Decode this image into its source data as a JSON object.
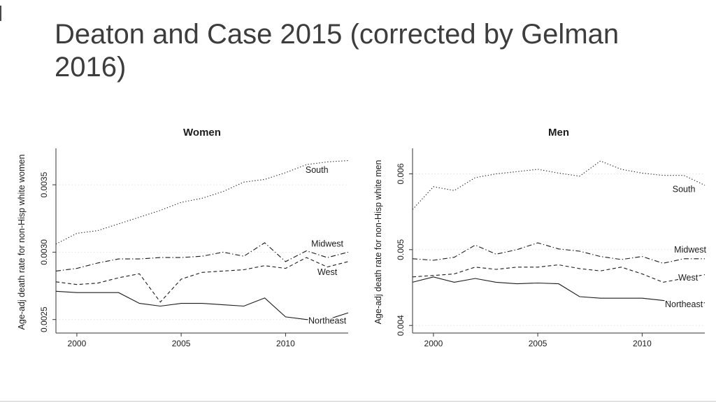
{
  "slide": {
    "title": "Deaton and Case 2015 (corrected by Gelman 2016)"
  },
  "chart_data": [
    {
      "type": "line",
      "title": "Women",
      "ylabel": "Age-adj death rate for non-Hisp white women",
      "xlabel": "",
      "x": [
        1999,
        2000,
        2001,
        2002,
        2003,
        2004,
        2005,
        2006,
        2007,
        2008,
        2009,
        2010,
        2011,
        2012,
        2013
      ],
      "xlim": [
        1999,
        2013
      ],
      "ylim": [
        0.0024,
        0.00375
      ],
      "xticks": [
        "2000",
        "2005",
        "2010"
      ],
      "xtick_values": [
        2000,
        2005,
        2010
      ],
      "ytick_labels": [
        "0.0025",
        "0.0030",
        "0.0035"
      ],
      "ytick_values": [
        0.0025,
        0.003,
        0.0035
      ],
      "grid": true,
      "legend_position": "inline-labels",
      "series": [
        {
          "name": "South",
          "line_style": "dotted",
          "label_pos": {
            "x": 2011.5,
            "y": 0.00359
          },
          "values": [
            0.00306,
            0.00314,
            0.00316,
            0.00321,
            0.00326,
            0.00331,
            0.00337,
            0.0034,
            0.00345,
            0.00352,
            0.00354,
            0.00359,
            0.00365,
            0.00367,
            0.00368
          ]
        },
        {
          "name": "Midwest",
          "line_style": "dashdot",
          "label_pos": {
            "x": 2012,
            "y": 0.00304
          },
          "values": [
            0.00286,
            0.00288,
            0.00292,
            0.00295,
            0.00295,
            0.00296,
            0.00296,
            0.00297,
            0.003,
            0.00297,
            0.00307,
            0.00293,
            0.00301,
            0.00296,
            0.003
          ]
        },
        {
          "name": "West",
          "line_style": "dashed",
          "label_pos": {
            "x": 2012,
            "y": 0.00283
          },
          "values": [
            0.00278,
            0.00276,
            0.00277,
            0.00281,
            0.00284,
            0.00263,
            0.0028,
            0.00285,
            0.00286,
            0.00287,
            0.0029,
            0.00288,
            0.00296,
            0.00289,
            0.00293
          ]
        },
        {
          "name": "Northeast",
          "line_style": "solid",
          "label_pos": {
            "x": 2012,
            "y": 0.00247
          },
          "values": [
            0.00271,
            0.0027,
            0.0027,
            0.0027,
            0.00262,
            0.0026,
            0.00262,
            0.00262,
            0.00261,
            0.0026,
            0.00266,
            0.00252,
            0.0025,
            0.0025,
            0.00255
          ]
        }
      ]
    },
    {
      "type": "line",
      "title": "Men",
      "ylabel": "Age-adj death rate for non-Hisp white men",
      "xlabel": "",
      "x": [
        1999,
        2000,
        2001,
        2002,
        2003,
        2004,
        2005,
        2006,
        2007,
        2008,
        2009,
        2010,
        2011,
        2012,
        2013
      ],
      "xlim": [
        1999,
        2013
      ],
      "ylim": [
        0.0039,
        0.0063
      ],
      "xticks": [
        "2000",
        "2005",
        "2010"
      ],
      "xtick_values": [
        2000,
        2005,
        2010
      ],
      "ytick_labels": [
        "0.004",
        "0.005",
        "0.006"
      ],
      "ytick_values": [
        0.004,
        0.005,
        0.006
      ],
      "grid": true,
      "legend_position": "inline-labels",
      "series": [
        {
          "name": "South",
          "line_style": "dotted",
          "label_pos": {
            "x": 2012,
            "y": 0.00576
          },
          "values": [
            0.00553,
            0.00583,
            0.00578,
            0.00595,
            0.006,
            0.00603,
            0.00606,
            0.00601,
            0.00597,
            0.00617,
            0.00606,
            0.00601,
            0.00598,
            0.00598,
            0.00585
          ]
        },
        {
          "name": "Midwest",
          "line_style": "dashdot",
          "label_pos": {
            "x": 2012.3,
            "y": 0.00496
          },
          "values": [
            0.00488,
            0.00486,
            0.0049,
            0.00506,
            0.00494,
            0.005,
            0.00509,
            0.00501,
            0.00498,
            0.00491,
            0.00487,
            0.00491,
            0.00482,
            0.00488,
            0.00488
          ]
        },
        {
          "name": "West",
          "line_style": "dashed",
          "label_pos": {
            "x": 2012.2,
            "y": 0.00459
          },
          "values": [
            0.00464,
            0.00466,
            0.00468,
            0.00477,
            0.00474,
            0.00477,
            0.00477,
            0.0048,
            0.00475,
            0.00472,
            0.00477,
            0.00468,
            0.00457,
            0.00462,
            0.00467
          ]
        },
        {
          "name": "Northeast",
          "line_style": "solid",
          "label_pos": {
            "x": 2012,
            "y": 0.00424
          },
          "values": [
            0.00457,
            0.00464,
            0.00457,
            0.00462,
            0.00457,
            0.00455,
            0.00456,
            0.00455,
            0.00438,
            0.00436,
            0.00436,
            0.00436,
            0.00433,
            0.00427,
            0.0043
          ]
        }
      ]
    }
  ]
}
